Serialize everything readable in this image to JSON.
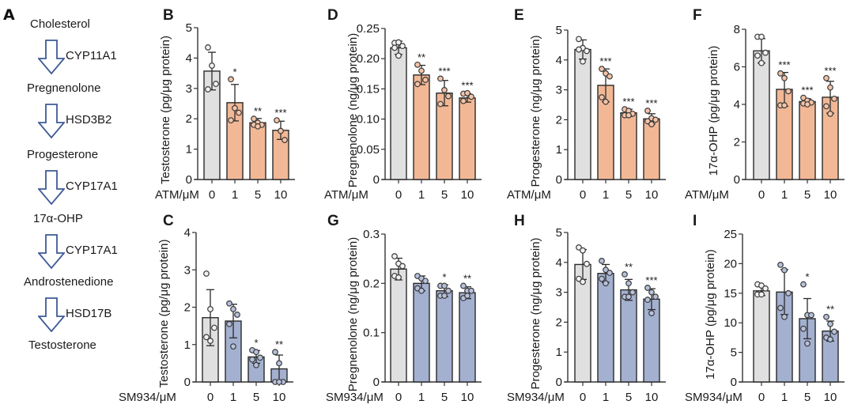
{
  "figure": {
    "panel_a": {
      "letter": "A",
      "steps": [
        {
          "metabolite": "Cholesterol",
          "enzyme": "CYP11A1"
        },
        {
          "metabolite": "Pregnenolone",
          "enzyme": "HSD3B2"
        },
        {
          "metabolite": "Progesterone",
          "enzyme": "CYP17A1"
        },
        {
          "metabolite": "17α-OHP",
          "enzyme": "CYP17A1"
        },
        {
          "metabolite": "Androstenedione",
          "enzyme": "HSD17B"
        },
        {
          "metabolite": "Testosterone",
          "enzyme": null
        }
      ]
    },
    "colors": {
      "control_bar": "#e0e0e0",
      "atm_bar": "#f2b896",
      "sm934_bar": "#a3b0cf",
      "outline": "#2a2a2a"
    }
  },
  "chart_data": [
    {
      "panel": "B",
      "type": "bar",
      "treatment": "ATM",
      "xlabel": "ATM/μM",
      "ylabel": "Testosterone (pg/μg protein)",
      "categories": [
        "0",
        "1",
        "5",
        "10"
      ],
      "values": [
        3.57,
        2.53,
        1.87,
        1.62
      ],
      "error_sd": [
        0.62,
        0.6,
        0.14,
        0.3
      ],
      "points": [
        [
          4.35,
          3.75,
          3.15,
          2.97
        ],
        [
          3.3,
          2.35,
          2.2,
          1.95
        ],
        [
          2.0,
          1.87,
          1.8,
          1.8,
          1.75
        ],
        [
          1.95,
          1.6,
          1.3
        ]
      ],
      "significance": [
        "",
        "*",
        "**",
        "***"
      ],
      "ylim": [
        0,
        5
      ],
      "yticks": [
        0,
        1,
        2,
        3,
        4,
        5
      ]
    },
    {
      "panel": "D",
      "type": "bar",
      "treatment": "ATM",
      "xlabel": "ATM/μM",
      "ylabel": "Pregnenolone (ng/μg protein)",
      "categories": [
        "0",
        "1",
        "5",
        "10"
      ],
      "values": [
        0.218,
        0.173,
        0.143,
        0.135
      ],
      "error_sd": [
        0.011,
        0.016,
        0.021,
        0.007
      ],
      "points": [
        [
          0.226,
          0.227,
          0.221,
          0.218,
          0.205
        ],
        [
          0.19,
          0.18,
          0.165,
          0.158
        ],
        [
          0.167,
          0.148,
          0.138,
          0.125
        ],
        [
          0.142,
          0.143,
          0.137,
          0.13
        ]
      ],
      "significance": [
        "",
        "**",
        "***",
        "***"
      ],
      "ylim": [
        0,
        0.25
      ],
      "yticks": [
        0,
        0.05,
        0.1,
        0.15,
        0.2,
        0.25
      ],
      "ytick_labels": [
        "0",
        "0.05",
        "0.10",
        "0.15",
        "0.20",
        "0.25"
      ]
    },
    {
      "panel": "E",
      "type": "bar",
      "treatment": "ATM",
      "xlabel": "ATM/μM",
      "ylabel": "Progesterone (ng/μg protein)",
      "categories": [
        "0",
        "1",
        "5",
        "10"
      ],
      "values": [
        4.35,
        3.15,
        2.23,
        2.03
      ],
      "error_sd": [
        0.32,
        0.55,
        0.12,
        0.17
      ],
      "points": [
        [
          4.7,
          4.4,
          4.3,
          4.35,
          3.95
        ],
        [
          3.7,
          3.55,
          3.45,
          2.75,
          2.6
        ],
        [
          2.35,
          2.3,
          2.2,
          2.15,
          2.15
        ],
        [
          2.3,
          2.05,
          2.0,
          1.95,
          1.85
        ]
      ],
      "significance": [
        "",
        "***",
        "***",
        "***"
      ],
      "ylim": [
        0,
        5
      ],
      "yticks": [
        0,
        1,
        2,
        3,
        4,
        5
      ]
    },
    {
      "panel": "F",
      "type": "bar",
      "treatment": "ATM",
      "xlabel": "ATM/μM",
      "ylabel": "17α-OHP (pg/μg protein)",
      "categories": [
        "0",
        "1",
        "5",
        "10"
      ],
      "values": [
        6.85,
        4.8,
        4.15,
        4.38
      ],
      "error_sd": [
        0.65,
        0.9,
        0.15,
        0.85
      ],
      "points": [
        [
          7.6,
          7.6,
          6.75,
          6.6,
          6.2
        ],
        [
          5.65,
          5.4,
          4.7,
          3.95,
          3.95
        ],
        [
          4.35,
          4.2,
          4.1,
          4.05,
          4.0
        ],
        [
          5.4,
          4.9,
          4.3,
          3.9,
          3.5
        ]
      ],
      "significance": [
        "",
        "***",
        "***",
        "***"
      ],
      "ylim": [
        0,
        8
      ],
      "yticks": [
        0,
        2,
        4,
        6,
        8
      ]
    },
    {
      "panel": "C",
      "type": "bar",
      "treatment": "SM934",
      "xlabel": "SM934/μM",
      "ylabel": "Testosterone (pg/μg protein)",
      "categories": [
        "0",
        "1",
        "5",
        "10"
      ],
      "values": [
        1.72,
        1.63,
        0.67,
        0.35
      ],
      "error_sd": [
        0.75,
        0.45,
        0.17,
        0.37
      ],
      "points": [
        [
          2.9,
          1.95,
          1.45,
          1.2,
          1.1
        ],
        [
          2.1,
          1.95,
          1.8,
          1.55,
          0.95
        ],
        [
          0.85,
          0.8,
          0.65,
          0.6,
          0.45
        ],
        [
          0.8,
          0.5,
          0.0,
          0.0,
          0.0
        ]
      ],
      "significance": [
        "",
        "",
        "*",
        "**"
      ],
      "ylim": [
        0,
        4
      ],
      "yticks": [
        0,
        1,
        2,
        3,
        4
      ]
    },
    {
      "panel": "G",
      "type": "bar",
      "treatment": "SM934",
      "xlabel": "SM934/μM",
      "ylabel": "Pregnenolone (ng/μg protein)",
      "categories": [
        "0",
        "1",
        "5",
        "10"
      ],
      "values": [
        0.229,
        0.2,
        0.185,
        0.181
      ],
      "error_sd": [
        0.022,
        0.015,
        0.012,
        0.012
      ],
      "points": [
        [
          0.255,
          0.24,
          0.235,
          0.215,
          0.212
        ],
        [
          0.215,
          0.21,
          0.205,
          0.19,
          0.185
        ],
        [
          0.195,
          0.195,
          0.185,
          0.175,
          0.175
        ],
        [
          0.195,
          0.185,
          0.185,
          0.17,
          0.175
        ]
      ],
      "significance": [
        "",
        "",
        "*",
        "**"
      ],
      "ylim": [
        0,
        0.3
      ],
      "yticks": [
        0,
        0.1,
        0.2,
        0.3
      ],
      "ytick_labels": [
        "0",
        "0.1",
        "0.2",
        "0.3"
      ]
    },
    {
      "panel": "H",
      "type": "bar",
      "treatment": "SM934",
      "xlabel": "SM934/μM",
      "ylabel": "Progesterone (ng/μg protein)",
      "categories": [
        "0",
        "1",
        "5",
        "10"
      ],
      "values": [
        3.93,
        3.63,
        3.08,
        2.77
      ],
      "error_sd": [
        0.5,
        0.3,
        0.35,
        0.35
      ],
      "points": [
        [
          4.5,
          4.4,
          3.95,
          3.45,
          3.35
        ],
        [
          4.05,
          3.75,
          3.65,
          3.45,
          3.3
        ],
        [
          3.6,
          3.3,
          3.0,
          2.85,
          2.85
        ],
        [
          3.15,
          3.0,
          2.85,
          2.75,
          2.3
        ]
      ],
      "significance": [
        "",
        "",
        "**",
        "***"
      ],
      "ylim": [
        0,
        5
      ],
      "yticks": [
        0,
        1,
        2,
        3,
        4,
        5
      ]
    },
    {
      "panel": "I",
      "type": "bar",
      "treatment": "SM934",
      "xlabel": "SM934/μM",
      "ylabel": "17α-OHP (pg/μg protein)",
      "categories": [
        "0",
        "1",
        "5",
        "10"
      ],
      "values": [
        15.4,
        15.2,
        10.7,
        8.6
      ],
      "error_sd": [
        0.8,
        3.8,
        3.4,
        1.7
      ],
      "points": [
        [
          16.5,
          16.3,
          15.8,
          14.8,
          14.8
        ],
        [
          19.8,
          18.9,
          15.0,
          12.5,
          11.0
        ],
        [
          16.5,
          11.3,
          11.3,
          9.0,
          6.5
        ],
        [
          11.0,
          9.8,
          8.5,
          7.5,
          7.2
        ]
      ],
      "significance": [
        "",
        "",
        "*",
        "**"
      ],
      "ylim": [
        0,
        25
      ],
      "yticks": [
        0,
        5,
        10,
        15,
        20,
        25
      ]
    }
  ]
}
